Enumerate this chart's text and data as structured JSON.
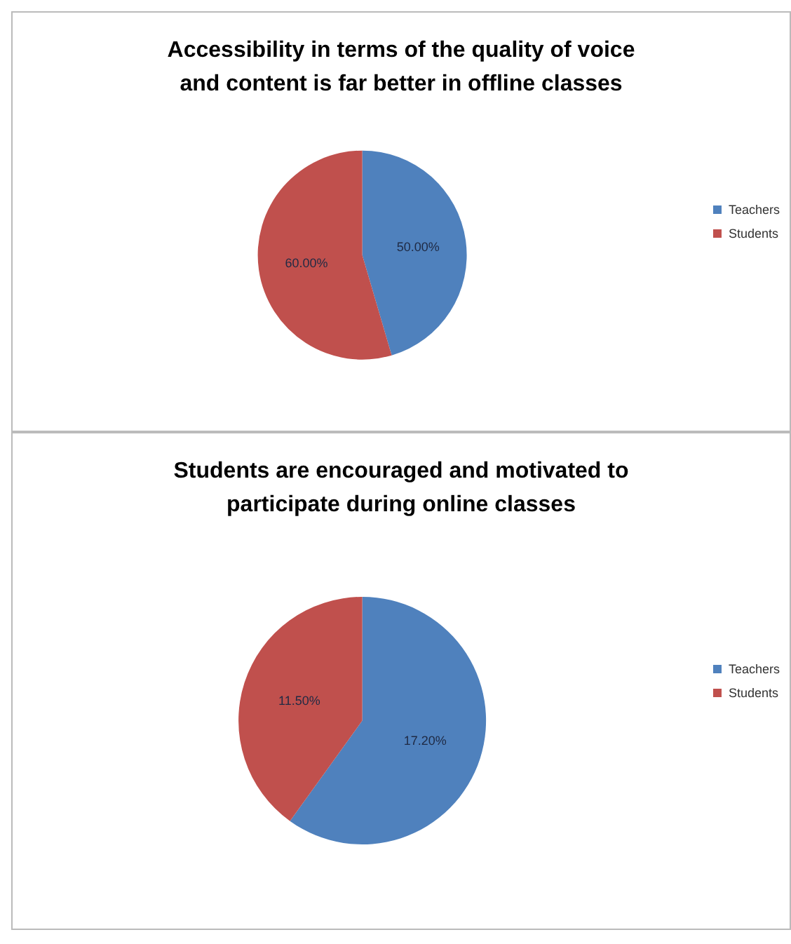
{
  "chart_data": [
    {
      "type": "pie",
      "title": "Accessibility in terms of the quality of voice\nand content is far better in offline classes",
      "categories": [
        "Teachers",
        "Students"
      ],
      "values": [
        50,
        60
      ],
      "value_labels": [
        "50.00%",
        "60.00%"
      ],
      "colors": [
        "#4f81bd",
        "#c0504d"
      ],
      "legend": "right"
    },
    {
      "type": "pie",
      "title": "Students are encouraged and motivated to\nparticipate during online classes",
      "categories": [
        "Teachers",
        "Students"
      ],
      "values": [
        17.2,
        11.5
      ],
      "value_labels": [
        "17.20%",
        "11.50%"
      ],
      "colors": [
        "#4f81bd",
        "#c0504d"
      ],
      "legend": "right"
    }
  ]
}
